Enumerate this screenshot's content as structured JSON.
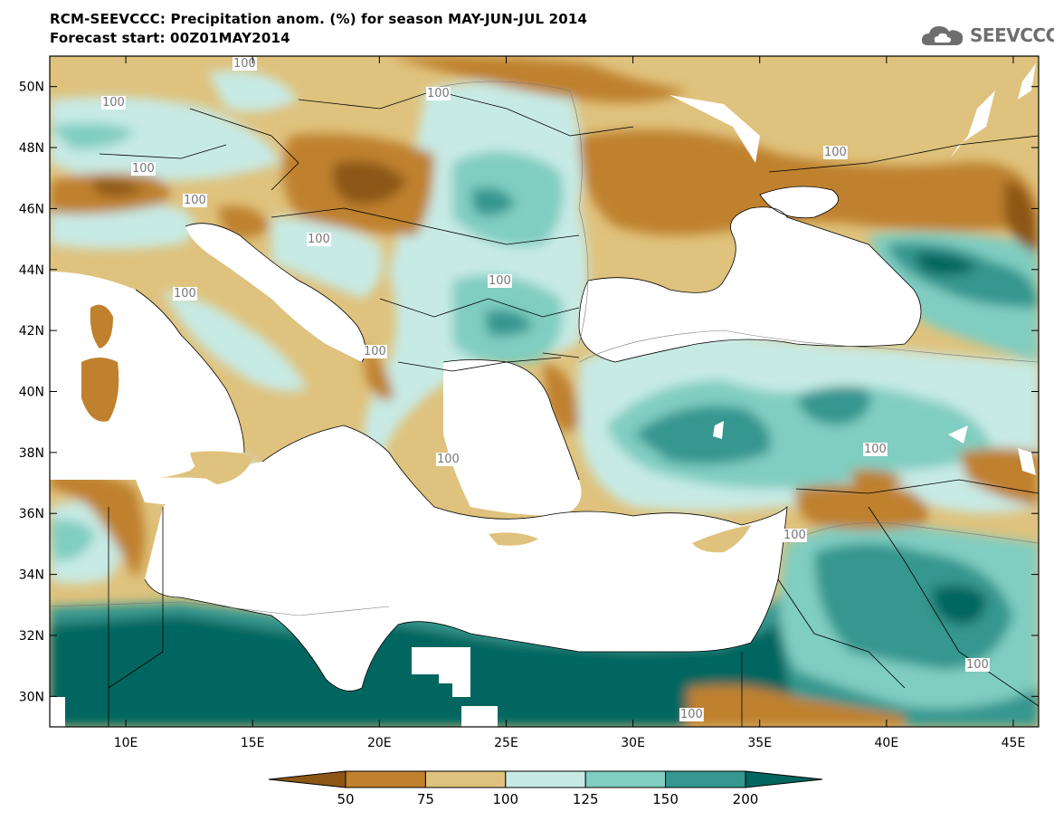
{
  "title": {
    "line1": "RCM-SEEVCCC: Precipitation anom. (%) for season MAY-JUN-JUL 2014",
    "line2": "Forecast start: 00Z01MAY2014"
  },
  "logo": {
    "text": "SEEVCCC",
    "icon": "cloud-logo-icon"
  },
  "map": {
    "lon_range": [
      7,
      46
    ],
    "lat_range": [
      29,
      51
    ],
    "x_ticks": [
      "10E",
      "15E",
      "20E",
      "25E",
      "30E",
      "35E",
      "40E",
      "45E"
    ],
    "y_ticks": [
      "50N",
      "48N",
      "46N",
      "44N",
      "42N",
      "40N",
      "38N",
      "36N",
      "34N",
      "32N",
      "30N"
    ],
    "contour_labels": [
      "100",
      "100",
      "100",
      "100",
      "100",
      "100",
      "100",
      "100",
      "100",
      "100",
      "100",
      "100",
      "100",
      "100",
      "100"
    ]
  },
  "colorbar": {
    "labels": [
      "50",
      "75",
      "100",
      "125",
      "150",
      "200"
    ],
    "colors": [
      "#8c5614",
      "#bf812d",
      "#dfc27d",
      "#c7eae5",
      "#80cdc1",
      "#35978f",
      "#01665e"
    ]
  }
}
